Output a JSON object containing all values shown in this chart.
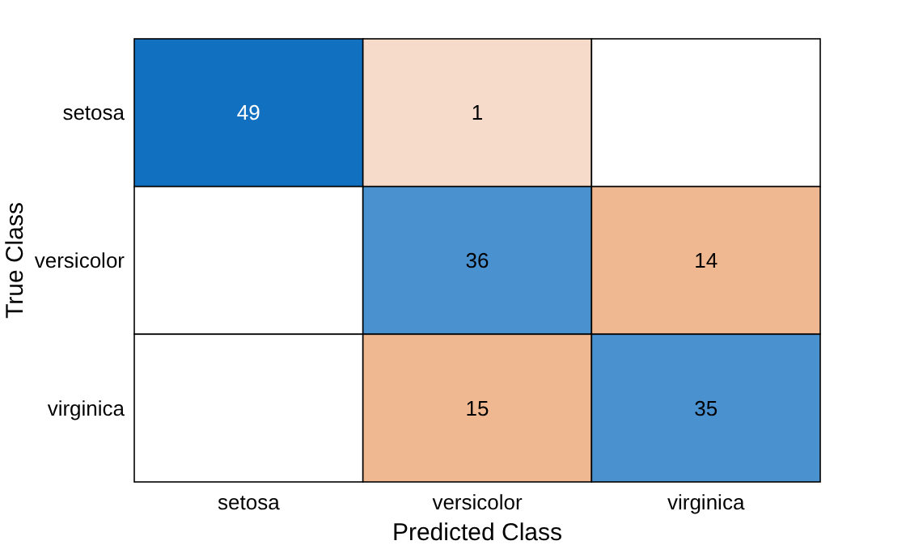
{
  "chart_data": {
    "type": "heatmap",
    "xlabel": "Predicted Class",
    "ylabel": "True Class",
    "categories": [
      "setosa",
      "versicolor",
      "virginica"
    ],
    "y_categories": [
      "setosa",
      "versicolor",
      "virginica"
    ],
    "cells": [
      [
        49,
        1,
        null
      ],
      [
        null,
        36,
        14
      ],
      [
        null,
        15,
        35
      ]
    ],
    "colors": [
      [
        "#1170c0",
        "#f7dbca",
        null
      ],
      [
        null,
        "#4a91d0",
        "#f0b890"
      ],
      [
        null,
        "#f0b890",
        "#4a91d0"
      ]
    ],
    "data_labels": true
  }
}
